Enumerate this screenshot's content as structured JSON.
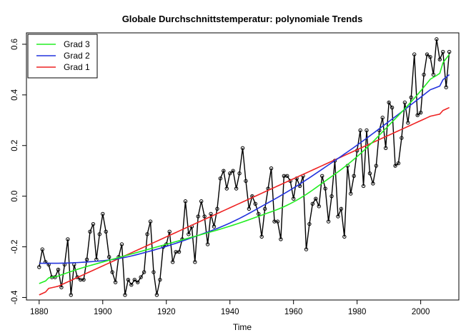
{
  "chart_data": {
    "type": "line",
    "title": "Globale Durchschnittstemperatur: polynomiale Trends",
    "xlabel": "Time",
    "ylabel": "",
    "xlim": [
      1876,
      2012
    ],
    "ylim": [
      -0.41,
      0.645
    ],
    "x_ticks": [
      1880,
      1900,
      1920,
      1940,
      1960,
      1980,
      2000
    ],
    "y_ticks": [
      -0.4,
      -0.2,
      0.0,
      0.2,
      0.4,
      0.6
    ],
    "x_tick_labels": [
      "1880",
      "1900",
      "1920",
      "1940",
      "1960",
      "1980",
      "2000"
    ],
    "y_tick_labels": [
      "-0.4",
      "-0.2",
      "0.0",
      "0.2",
      "0.4",
      "0.6"
    ],
    "grid": false,
    "legend_position": "top-left",
    "x_start": 1880,
    "observed": {
      "color": "#000000",
      "values": [
        -0.28,
        -0.21,
        -0.26,
        -0.27,
        -0.32,
        -0.32,
        -0.29,
        -0.36,
        -0.27,
        -0.17,
        -0.39,
        -0.27,
        -0.32,
        -0.33,
        -0.33,
        -0.25,
        -0.14,
        -0.11,
        -0.25,
        -0.15,
        -0.07,
        -0.14,
        -0.24,
        -0.3,
        -0.34,
        -0.24,
        -0.19,
        -0.39,
        -0.33,
        -0.35,
        -0.33,
        -0.34,
        -0.32,
        -0.3,
        -0.15,
        -0.1,
        -0.3,
        -0.39,
        -0.33,
        -0.2,
        -0.19,
        -0.14,
        -0.26,
        -0.22,
        -0.22,
        -0.17,
        -0.02,
        -0.15,
        -0.12,
        -0.26,
        -0.08,
        -0.02,
        -0.08,
        -0.19,
        -0.07,
        -0.12,
        -0.05,
        0.07,
        0.1,
        0.03,
        0.09,
        0.1,
        0.03,
        0.09,
        0.19,
        0.06,
        -0.05,
        0.0,
        -0.03,
        -0.07,
        -0.16,
        -0.05,
        0.03,
        0.11,
        -0.1,
        -0.1,
        -0.17,
        0.08,
        0.08,
        0.06,
        -0.01,
        0.07,
        0.04,
        0.08,
        -0.21,
        -0.11,
        -0.03,
        -0.01,
        -0.04,
        0.08,
        0.03,
        -0.1,
        0.0,
        0.14,
        -0.08,
        -0.05,
        -0.16,
        0.12,
        0.01,
        0.08,
        0.18,
        0.26,
        0.04,
        0.26,
        0.09,
        0.05,
        0.12,
        0.26,
        0.31,
        0.19,
        0.37,
        0.35,
        0.12,
        0.13,
        0.23,
        0.37,
        0.29,
        0.39,
        0.56,
        0.32,
        0.33,
        0.48,
        0.56,
        0.55,
        0.48,
        0.62,
        0.54,
        0.57,
        0.43,
        0.57
      ]
    },
    "series": [
      {
        "name": "Grad 3",
        "color": "#22ee22"
      },
      {
        "name": "Grad 2",
        "color": "#2233dd"
      },
      {
        "name": "Grad 1",
        "color": "#ee2222"
      }
    ],
    "trend_endpoints": {
      "Grad 1": {
        "1880": -0.39,
        "2009": 0.35
      },
      "Grad 2": {
        "1880": -0.265,
        "1890": -0.265,
        "1905": -0.25,
        "1920": -0.2,
        "1940": -0.11,
        "1960": 0.03,
        "1980": 0.2,
        "2000": 0.39,
        "2009": 0.48
      },
      "Grad 3": {
        "1880": -0.345,
        "1890": -0.295,
        "1900": -0.26,
        "1920": -0.19,
        "1940": -0.12,
        "1960": -0.03,
        "1980": 0.15,
        "2000": 0.41,
        "2009": 0.56
      }
    }
  }
}
